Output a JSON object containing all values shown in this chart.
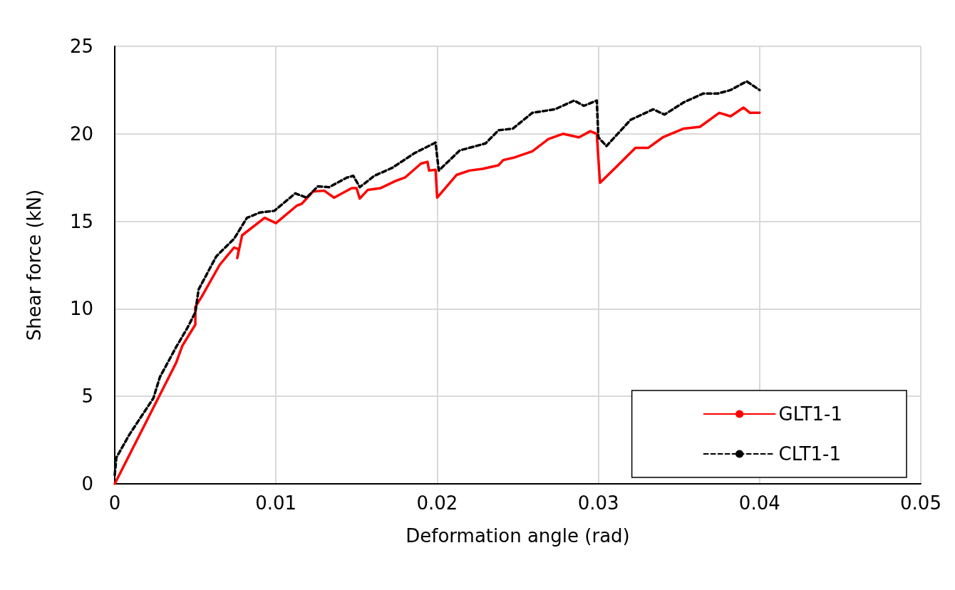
{
  "chart_data": {
    "type": "line",
    "xlabel": "Deformation angle (rad)",
    "ylabel": "Shear force (kN)",
    "xlim": [
      0,
      0.05
    ],
    "xticks": [
      0,
      0.01,
      0.02,
      0.03,
      0.04,
      0.05
    ],
    "ylim": [
      0,
      25
    ],
    "yticks": [
      0,
      5,
      10,
      15,
      20,
      25
    ],
    "grid": true,
    "legend": "bottom right",
    "marker": "none",
    "series": [
      {
        "name": "GLT1-1",
        "color": "#ff0000",
        "line_style": "solid",
        "x": [
          0,
          0.0038,
          0.0042,
          0.005,
          0.005,
          0.0054,
          0.0065,
          0.0074,
          0.0077,
          0.0076,
          0.0079,
          0.0093,
          0.01,
          0.0113,
          0.0116,
          0.0123,
          0.013,
          0.0136,
          0.0147,
          0.015,
          0.0152,
          0.0157,
          0.0165,
          0.0174,
          0.018,
          0.019,
          0.0194,
          0.0195,
          0.0199,
          0.02,
          0.0212,
          0.022,
          0.0228,
          0.0238,
          0.0241,
          0.0248,
          0.0259,
          0.0269,
          0.0278,
          0.0288,
          0.0295,
          0.0299,
          0.0301,
          0.0311,
          0.0323,
          0.0331,
          0.034,
          0.0353,
          0.0363,
          0.0375,
          0.0382,
          0.039,
          0.0394,
          0.04
        ],
        "values": [
          0,
          6.9,
          7.9,
          9.1,
          10.1,
          10.7,
          12.5,
          13.5,
          13.4,
          12.9,
          14.2,
          15.2,
          14.9,
          15.9,
          16.0,
          16.7,
          16.75,
          16.35,
          16.9,
          16.9,
          16.3,
          16.8,
          16.9,
          17.3,
          17.5,
          18.3,
          18.4,
          17.9,
          17.95,
          16.35,
          17.65,
          17.9,
          18.0,
          18.2,
          18.5,
          18.65,
          19.0,
          19.7,
          20.0,
          19.8,
          20.15,
          20.0,
          17.2,
          18.1,
          19.2,
          19.2,
          19.8,
          20.3,
          20.4,
          21.2,
          21.0,
          21.5,
          21.2,
          21.2
        ]
      },
      {
        "name": "CLT1-1",
        "color": "#000000",
        "line_style": "dashed",
        "x": [
          0,
          0.0001,
          0.0009,
          0.0024,
          0.0028,
          0.0038,
          0.0045,
          0.005,
          0.0052,
          0.0063,
          0.0074,
          0.0082,
          0.009,
          0.0099,
          0.0112,
          0.0119,
          0.0126,
          0.0133,
          0.0144,
          0.0148,
          0.0152,
          0.0161,
          0.0172,
          0.0186,
          0.0199,
          0.0201,
          0.0214,
          0.023,
          0.0238,
          0.0247,
          0.0259,
          0.0273,
          0.0285,
          0.0291,
          0.0299,
          0.03,
          0.0305,
          0.032,
          0.0334,
          0.0341,
          0.0353,
          0.0365,
          0.0374,
          0.0382,
          0.0392,
          0.04
        ],
        "values": [
          0.5,
          1.5,
          2.8,
          4.9,
          6.1,
          7.8,
          8.9,
          9.8,
          11.1,
          13.0,
          14.0,
          15.2,
          15.5,
          15.6,
          16.6,
          16.35,
          17.0,
          16.95,
          17.5,
          17.6,
          16.95,
          17.6,
          18.05,
          18.9,
          19.5,
          17.9,
          19.05,
          19.45,
          20.2,
          20.3,
          21.2,
          21.4,
          21.9,
          21.6,
          21.9,
          19.8,
          19.3,
          20.8,
          21.4,
          21.1,
          21.8,
          22.3,
          22.3,
          22.5,
          23.0,
          22.5
        ]
      }
    ]
  }
}
